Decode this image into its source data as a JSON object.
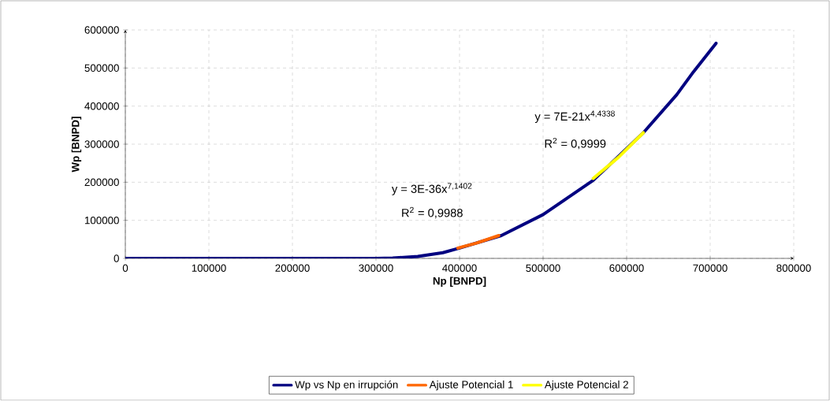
{
  "chart_data": {
    "type": "line",
    "xlabel": "Np [BNPD]",
    "ylabel": "Wp [BNPD]",
    "xlim": [
      0,
      800000
    ],
    "ylim": [
      0,
      600000
    ],
    "xticks": [
      0,
      100000,
      200000,
      300000,
      400000,
      500000,
      600000,
      700000,
      800000
    ],
    "yticks": [
      0,
      100000,
      200000,
      300000,
      400000,
      500000,
      600000
    ],
    "grid": true,
    "legend": "bottom",
    "marker": "none",
    "line_style": "solid",
    "annotations": [
      "y = 3E-36x$^{7,1402}$",
      "R$^{2}$ = 0,9988",
      "y = 7E-21x$^{4,4338}$",
      "R$^{2}$ = 0,9999"
    ],
    "series": [
      {
        "name": "Wp vs Np en irrupción",
        "color": "#000080",
        "x": [
          0,
          100000,
          200000,
          300000,
          320000,
          350000,
          380000,
          400000,
          450000,
          500000,
          530000,
          560000,
          590000,
          620000,
          660000,
          680000,
          707000
        ],
        "values": [
          0,
          0,
          0,
          0,
          1000,
          5000,
          15000,
          27000,
          60000,
          115000,
          160000,
          205000,
          null,
          330000,
          430000,
          490000,
          565000
        ]
      },
      {
        "name": "Ajuste Potencial 1",
        "color": "#ff6600",
        "x": [
          398000,
          420000,
          447000
        ],
        "values": [
          27000,
          40000,
          60000
        ]
      },
      {
        "name": "Ajuste Potencial 2",
        "color": "#ffff00",
        "x": [
          560000,
          590000,
          620000
        ],
        "values": [
          210000,
          265000,
          330000
        ]
      }
    ]
  }
}
